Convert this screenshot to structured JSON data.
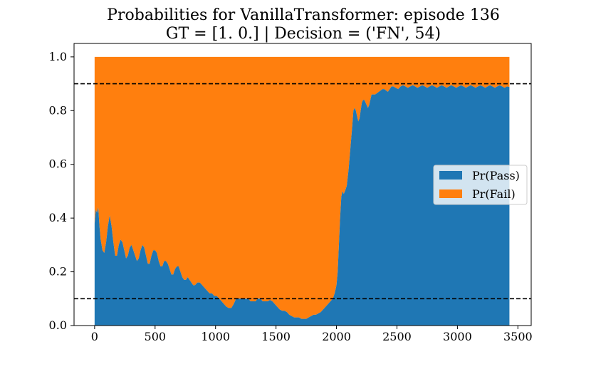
{
  "chart_data": {
    "type": "area",
    "title": "Probabilities for VanillaTransformer: episode 136",
    "subtitle": "GT = [1. 0.] | Decision = ('FN', 54)",
    "xlabel": "",
    "ylabel": "",
    "xlim": [
      -170,
      3610
    ],
    "ylim": [
      0.0,
      1.05
    ],
    "x_ticks": [
      0,
      500,
      1000,
      1500,
      2000,
      2500,
      3000,
      3500
    ],
    "y_ticks": [
      0.0,
      0.2,
      0.4,
      0.6,
      0.8,
      1.0
    ],
    "x_tick_labels": [
      "0",
      "500",
      "1000",
      "1500",
      "2000",
      "2500",
      "3000",
      "3500"
    ],
    "y_tick_labels": [
      "0.0",
      "0.2",
      "0.4",
      "0.6",
      "0.8",
      "1.0"
    ],
    "threshold_lines": [
      0.9,
      0.1
    ],
    "legend_position": "center-right",
    "grid": false,
    "series": [
      {
        "name": "Pr(Pass)",
        "color": "#1f77b4",
        "x": [
          0,
          10,
          20,
          30,
          40,
          50,
          65,
          80,
          95,
          110,
          125,
          140,
          155,
          170,
          185,
          200,
          215,
          230,
          245,
          260,
          275,
          290,
          305,
          320,
          335,
          350,
          365,
          380,
          395,
          410,
          425,
          440,
          455,
          470,
          485,
          500,
          515,
          530,
          545,
          560,
          575,
          590,
          605,
          620,
          635,
          650,
          665,
          680,
          695,
          710,
          725,
          740,
          755,
          770,
          785,
          800,
          815,
          830,
          850,
          870,
          890,
          910,
          930,
          950,
          970,
          990,
          1010,
          1030,
          1050,
          1070,
          1090,
          1110,
          1130,
          1150,
          1170,
          1190,
          1210,
          1230,
          1250,
          1270,
          1290,
          1310,
          1330,
          1350,
          1370,
          1390,
          1410,
          1430,
          1450,
          1470,
          1490,
          1510,
          1530,
          1550,
          1570,
          1590,
          1610,
          1630,
          1650,
          1670,
          1690,
          1710,
          1730,
          1750,
          1770,
          1790,
          1810,
          1830,
          1850,
          1870,
          1890,
          1910,
          1930,
          1950,
          1970,
          1985,
          2000,
          2010,
          2020,
          2030,
          2040,
          2050,
          2060,
          2070,
          2085,
          2100,
          2115,
          2130,
          2140,
          2150,
          2160,
          2170,
          2180,
          2190,
          2200,
          2210,
          2220,
          2230,
          2240,
          2250,
          2260,
          2270,
          2280,
          2290,
          2300,
          2310,
          2320,
          2335,
          2350,
          2365,
          2380,
          2395,
          2410,
          2425,
          2440,
          2455,
          2470,
          2490,
          2510,
          2530,
          2550,
          2570,
          2590,
          2610,
          2630,
          2650,
          2670,
          2690,
          2710,
          2730,
          2750,
          2770,
          2790,
          2810,
          2830,
          2850,
          2870,
          2890,
          2910,
          2930,
          2950,
          2970,
          2990,
          3010,
          3030,
          3050,
          3070,
          3090,
          3110,
          3130,
          3150,
          3170,
          3190,
          3210,
          3230,
          3250,
          3270,
          3290,
          3310,
          3330,
          3350,
          3370,
          3390,
          3410,
          3430
        ],
        "values": [
          0.38,
          0.43,
          0.42,
          0.44,
          0.37,
          0.32,
          0.28,
          0.27,
          0.31,
          0.37,
          0.41,
          0.37,
          0.31,
          0.26,
          0.26,
          0.3,
          0.32,
          0.31,
          0.28,
          0.25,
          0.26,
          0.29,
          0.3,
          0.28,
          0.26,
          0.24,
          0.25,
          0.28,
          0.3,
          0.29,
          0.26,
          0.23,
          0.23,
          0.26,
          0.28,
          0.28,
          0.27,
          0.24,
          0.22,
          0.22,
          0.24,
          0.24,
          0.23,
          0.21,
          0.19,
          0.19,
          0.21,
          0.22,
          0.22,
          0.2,
          0.18,
          0.17,
          0.17,
          0.18,
          0.17,
          0.16,
          0.15,
          0.15,
          0.16,
          0.16,
          0.15,
          0.14,
          0.13,
          0.12,
          0.12,
          0.11,
          0.11,
          0.1,
          0.09,
          0.08,
          0.07,
          0.065,
          0.065,
          0.08,
          0.1,
          0.1,
          0.1,
          0.1,
          0.1,
          0.1,
          0.09,
          0.09,
          0.09,
          0.1,
          0.1,
          0.09,
          0.09,
          0.09,
          0.095,
          0.09,
          0.08,
          0.07,
          0.06,
          0.055,
          0.055,
          0.05,
          0.04,
          0.035,
          0.03,
          0.03,
          0.03,
          0.025,
          0.025,
          0.025,
          0.03,
          0.035,
          0.04,
          0.04,
          0.045,
          0.05,
          0.06,
          0.07,
          0.08,
          0.09,
          0.1,
          0.12,
          0.15,
          0.2,
          0.3,
          0.4,
          0.48,
          0.5,
          0.49,
          0.5,
          0.52,
          0.58,
          0.66,
          0.74,
          0.8,
          0.81,
          0.8,
          0.78,
          0.76,
          0.77,
          0.8,
          0.83,
          0.84,
          0.84,
          0.83,
          0.82,
          0.81,
          0.82,
          0.84,
          0.86,
          0.86,
          0.86,
          0.86,
          0.865,
          0.87,
          0.875,
          0.88,
          0.88,
          0.875,
          0.87,
          0.88,
          0.89,
          0.89,
          0.885,
          0.88,
          0.89,
          0.895,
          0.89,
          0.885,
          0.89,
          0.895,
          0.89,
          0.885,
          0.89,
          0.895,
          0.89,
          0.885,
          0.89,
          0.895,
          0.89,
          0.885,
          0.89,
          0.895,
          0.89,
          0.885,
          0.89,
          0.895,
          0.89,
          0.885,
          0.89,
          0.895,
          0.89,
          0.885,
          0.89,
          0.895,
          0.89,
          0.885,
          0.89,
          0.895,
          0.89,
          0.885,
          0.89,
          0.895,
          0.89,
          0.885,
          0.89,
          0.895,
          0.89,
          0.885,
          0.89,
          0.888
        ]
      },
      {
        "name": "Pr(Fail)",
        "color": "#ff7f0e",
        "stacked_on": "Pr(Pass)",
        "top": 1.0
      }
    ]
  }
}
